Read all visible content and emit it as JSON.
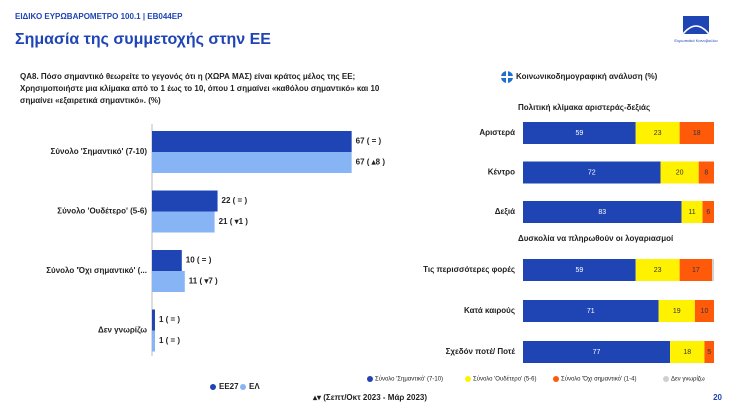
{
  "header": {
    "kicker": "ΕΙΔΙΚΟ ΕΥΡΩΒΑΡΟΜΕΤΡΟ 100.1 | EB044EP",
    "title": "Σημασία της συμμετοχής στην ΕΕ",
    "logo": "Ευρωπαϊκό Κοινοβούλιο"
  },
  "question": "QA8. Πόσο σημαντικό θεωρείτε το γεγονός ότι η (ΧΩΡΑ ΜΑΣ) είναι κράτος μέλος της ΕΕ; Χρησιμοποιήστε μια κλίμακα από το 1 έως το 10, όπου 1 σημαίνει «καθόλου σημαντικό» και 10 σημαίνει «εξαιρετικά σημαντικό». (%)",
  "footer": {
    "note": "▴▾ (Σεπτ/Οκτ 2023 - Μάρ 2023)",
    "page": "20"
  },
  "chart_data": [
    {
      "type": "bar",
      "categories": [
        "Σύνολο 'Σημαντικό' (7-10)",
        "Σύνολο 'Ουδέτερο' (5-6)",
        "Σύνολο 'Όχι σημαντικό' (...",
        "Δεν γνωρίζω"
      ],
      "xlim": [
        0,
        100
      ],
      "series": [
        {
          "name": "EE27",
          "color": "#1f45b5",
          "values": [
            67,
            22,
            10,
            1
          ],
          "value_labels": [
            "67 ( = )",
            "22 ( = )",
            "10 ( = )",
            "1 ( = )"
          ]
        },
        {
          "name": "ΕΛ",
          "color": "#86b4f5",
          "values": [
            67,
            21,
            11,
            1
          ],
          "value_labels": [
            "67 ( ▴8 )",
            "21 ( ▾1 )",
            "11 ( ▾7 )",
            "1 ( = )"
          ]
        }
      ]
    },
    {
      "type": "stacked_bar",
      "title": "Κοινωνικοδημογραφική ανάλυση (%)",
      "subtitle": "Πολιτική κλίμακα αριστεράς-δεξιάς",
      "categories": [
        "Αριστερά",
        "Κέντρο",
        "Δεξιά"
      ],
      "xlim": [
        0,
        100
      ],
      "series": [
        {
          "color": "#1f45b5",
          "values": [
            59,
            72,
            83
          ]
        },
        {
          "color": "#fff200",
          "values": [
            23,
            20,
            11
          ]
        },
        {
          "color": "#ff5a0a",
          "values": [
            18,
            8,
            6
          ]
        },
        {
          "color": "#d0d0d0",
          "values": [
            0,
            0,
            0
          ]
        }
      ]
    },
    {
      "type": "stacked_bar",
      "subtitle": "Δυσκολία να πληρωθούν οι λογαριασμοί",
      "categories": [
        "Τις περισσότερες φορές",
        "Κατά καιρούς",
        "Σχεδόν ποτέ/ Ποτέ"
      ],
      "xlim": [
        0,
        100
      ],
      "series": [
        {
          "name": "Σύνολο 'Σημαντικό' (7-10)",
          "color": "#1f45b5",
          "values": [
            59,
            71,
            77
          ]
        },
        {
          "name": "Σύνολο 'Ουδέτερο' (5-6)",
          "color": "#fff200",
          "values": [
            23,
            19,
            18
          ]
        },
        {
          "name": "Σύνολο 'Όχι σημαντικό' (1-4)",
          "color": "#ff5a0a",
          "values": [
            17,
            10,
            5
          ]
        },
        {
          "name": "Δεν γνωρίζω",
          "color": "#d0d0d0",
          "values": [
            1,
            0,
            0
          ]
        }
      ]
    }
  ]
}
